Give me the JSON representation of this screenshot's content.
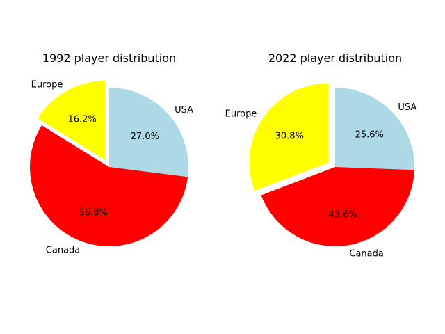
{
  "chart_data": [
    {
      "type": "pie",
      "title": "1992 player distribution",
      "start_angle_deg": 90,
      "direction": "clockwise",
      "slices": [
        {
          "label": "USA",
          "value": 27.0,
          "pct_text": "27.0%",
          "color": "#add8e6",
          "explode": 0
        },
        {
          "label": "Canada",
          "value": 56.8,
          "pct_text": "56.8%",
          "color": "#ff0000",
          "explode": 0
        },
        {
          "label": "Europe",
          "value": 16.2,
          "pct_text": "16.2%",
          "color": "#ffff00",
          "explode": 0.1
        }
      ]
    },
    {
      "type": "pie",
      "title": "2022 player distribution",
      "start_angle_deg": 90,
      "direction": "clockwise",
      "slices": [
        {
          "label": "USA",
          "value": 25.6,
          "pct_text": "25.6%",
          "color": "#add8e6",
          "explode": 0
        },
        {
          "label": "Canada",
          "value": 43.6,
          "pct_text": "43.6%",
          "color": "#ff0000",
          "explode": 0
        },
        {
          "label": "Europe",
          "value": 30.8,
          "pct_text": "30.8%",
          "color": "#ffff00",
          "explode": 0.1
        }
      ]
    }
  ]
}
